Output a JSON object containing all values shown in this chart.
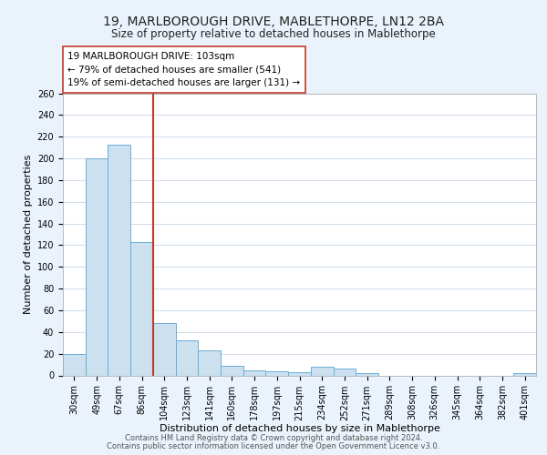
{
  "title": "19, MARLBOROUGH DRIVE, MABLETHORPE, LN12 2BA",
  "subtitle": "Size of property relative to detached houses in Mablethorpe",
  "xlabel": "Distribution of detached houses by size in Mablethorpe",
  "ylabel": "Number of detached properties",
  "bin_labels": [
    "30sqm",
    "49sqm",
    "67sqm",
    "86sqm",
    "104sqm",
    "123sqm",
    "141sqm",
    "160sqm",
    "178sqm",
    "197sqm",
    "215sqm",
    "234sqm",
    "252sqm",
    "271sqm",
    "289sqm",
    "308sqm",
    "326sqm",
    "345sqm",
    "364sqm",
    "382sqm",
    "401sqm"
  ],
  "bar_values": [
    20,
    200,
    213,
    123,
    48,
    32,
    23,
    9,
    5,
    4,
    3,
    8,
    6,
    2,
    0,
    0,
    0,
    0,
    0,
    0,
    2
  ],
  "bar_color": "#cce0f0",
  "bar_edge_color": "#6aaed6",
  "vline_color": "#c0392b",
  "annotation_box_text": "19 MARLBOROUGH DRIVE: 103sqm\n← 79% of detached houses are smaller (541)\n19% of semi-detached houses are larger (131) →",
  "ylim": [
    0,
    260
  ],
  "yticks": [
    0,
    20,
    40,
    60,
    80,
    100,
    120,
    140,
    160,
    180,
    200,
    220,
    240,
    260
  ],
  "footer1": "Contains HM Land Registry data © Crown copyright and database right 2024.",
  "footer2": "Contains public sector information licensed under the Open Government Licence v3.0.",
  "bg_color": "#eaf3fb",
  "plot_bg_color": "#ffffff",
  "title_fontsize": 10,
  "subtitle_fontsize": 8.5,
  "axis_label_fontsize": 8,
  "tick_fontsize": 7,
  "annotation_fontsize": 7.5,
  "footer_fontsize": 6
}
